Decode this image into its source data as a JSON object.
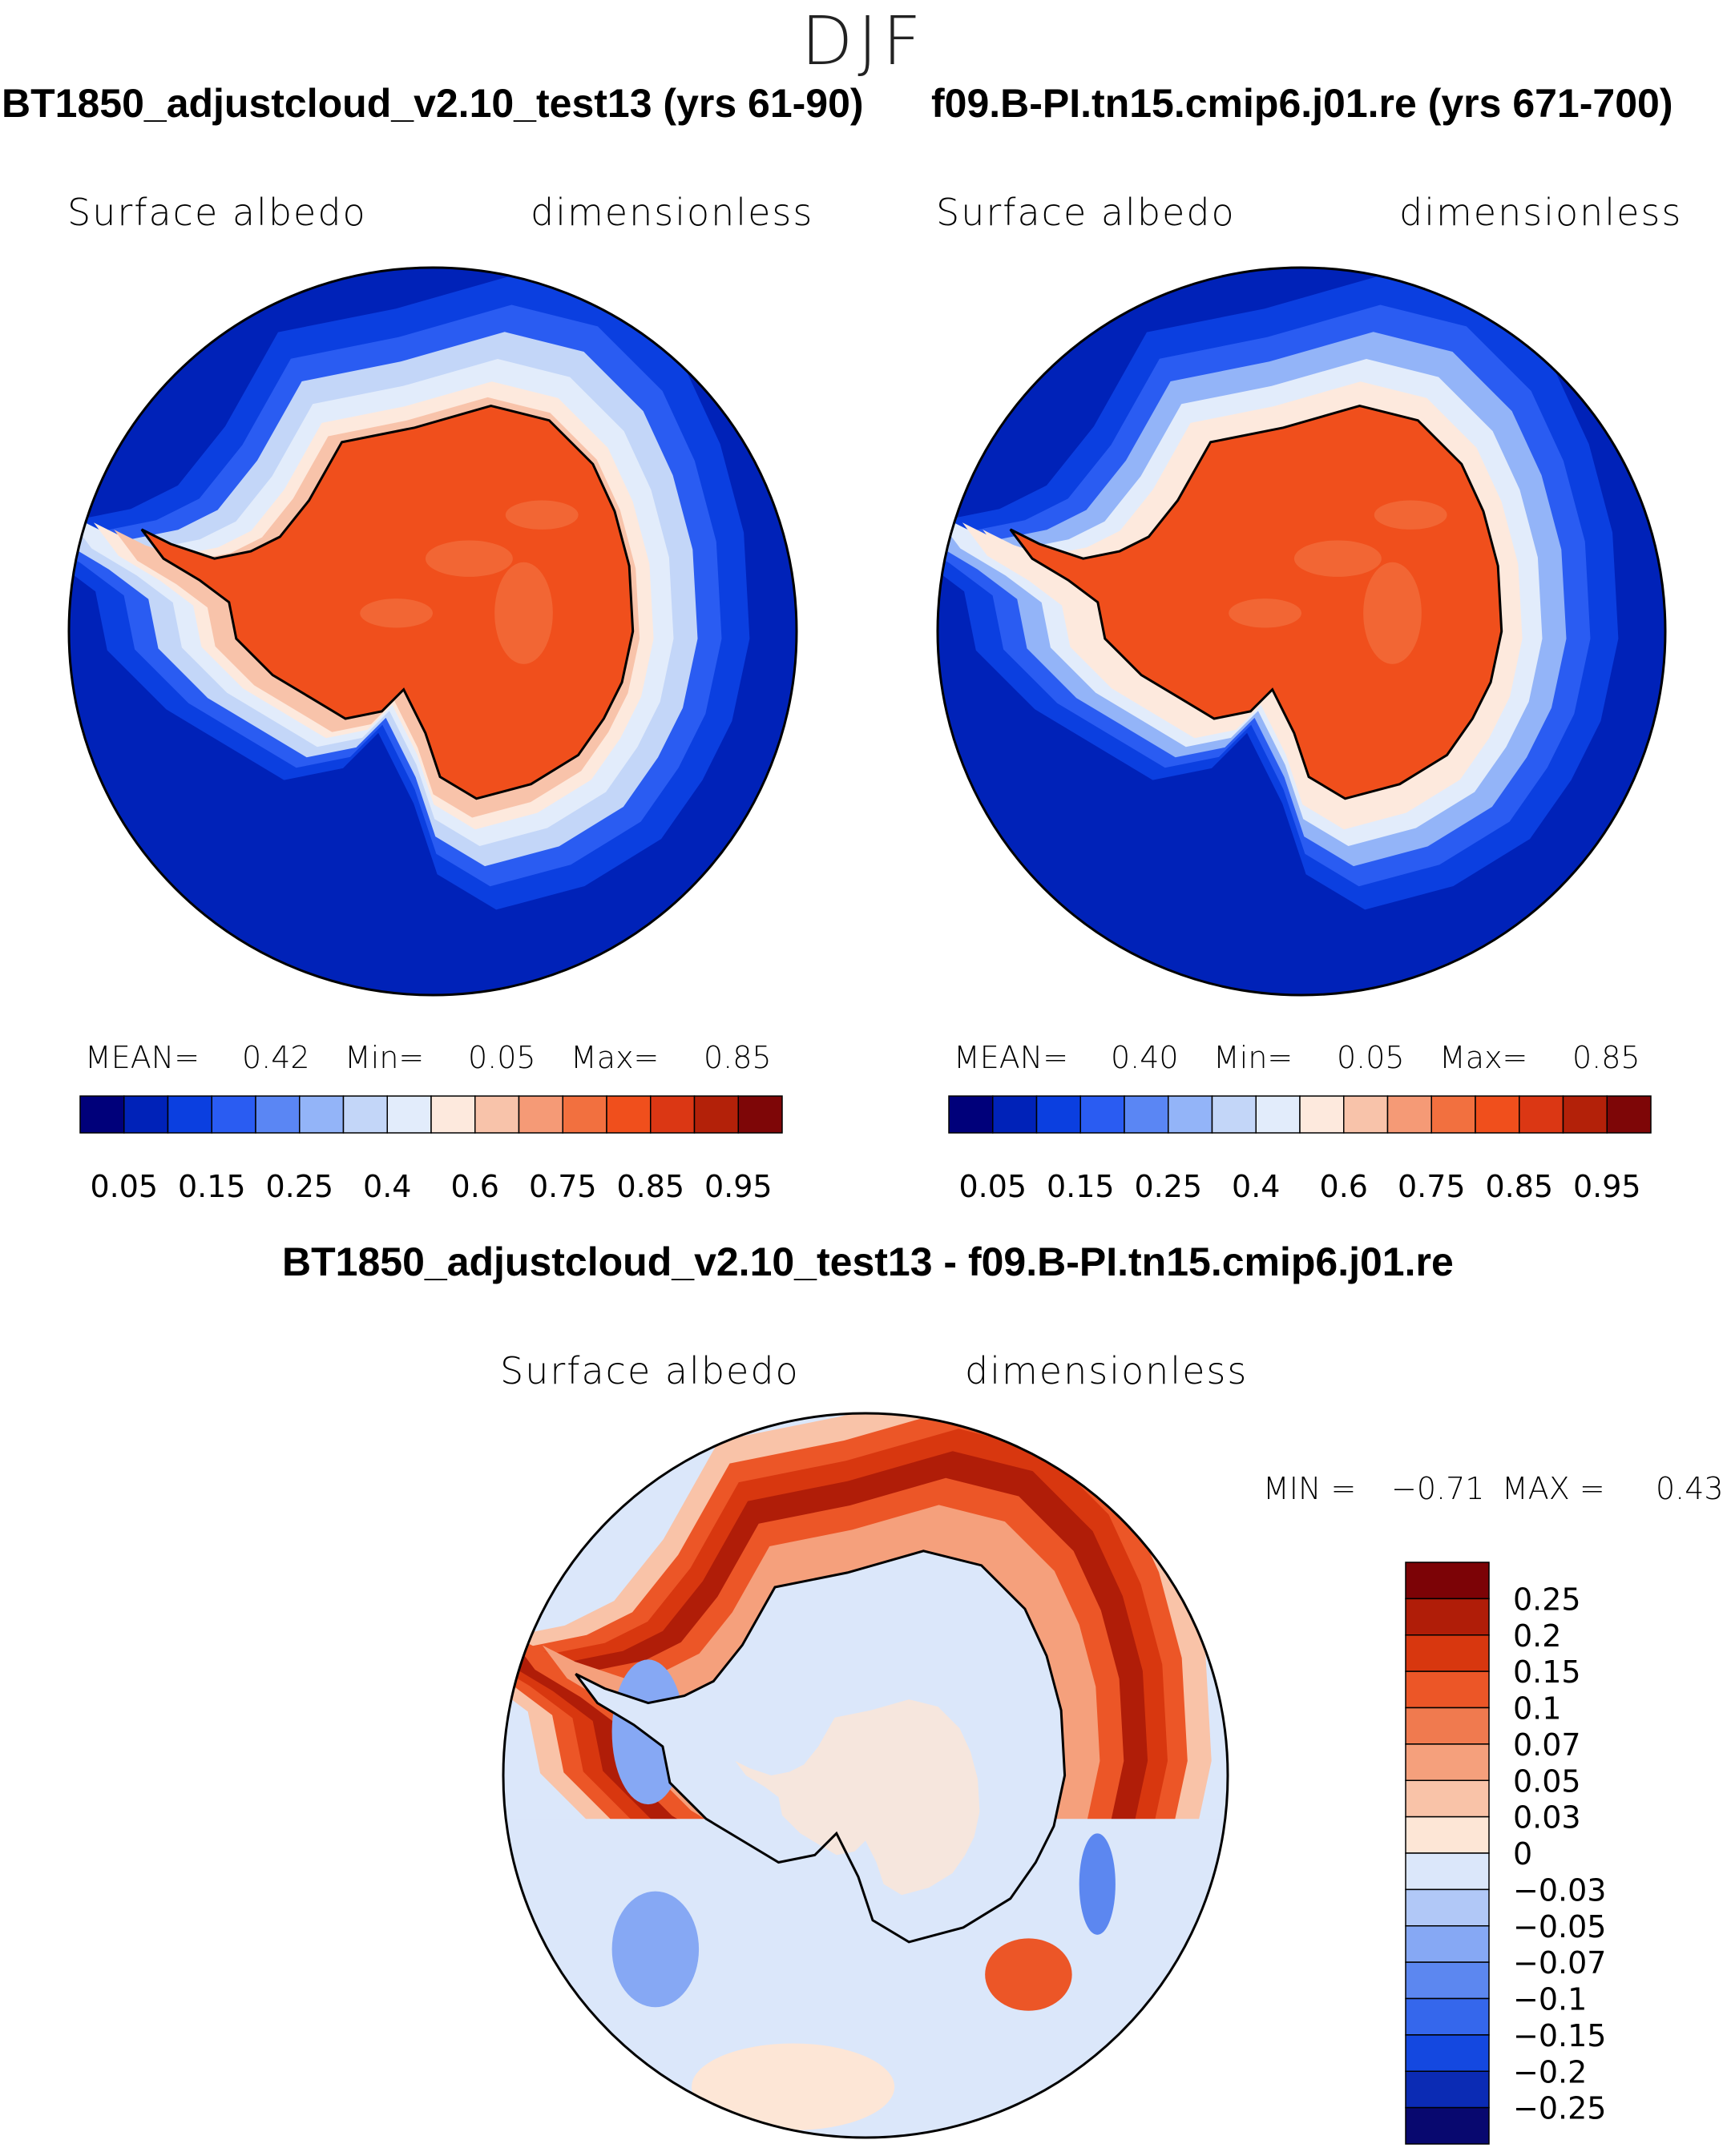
{
  "figure": {
    "season": "DJF",
    "panel_left": {
      "title": "BT1850_adjustcloud_v2.10_test13 (yrs 61-90)",
      "variable": "Surface albedo",
      "units": "dimensionless",
      "mean_label": "MEAN=",
      "mean": "0.42",
      "min_label": "Min=",
      "min": "0.05",
      "max_label": "Max=",
      "max": "0.85"
    },
    "panel_right": {
      "title": "f09.B-PI.tn15.cmip6.j01.re (yrs 671-700)",
      "variable": "Surface albedo",
      "units": "dimensionless",
      "mean_label": "MEAN=",
      "mean": "0.40",
      "min_label": "Min=",
      "min": "0.05",
      "max_label": "Max=",
      "max": "0.85"
    },
    "panel_diff": {
      "title": "BT1850_adjustcloud_v2.10_test13 - f09.B-PI.tn15.cmip6.j01.re",
      "variable": "Surface albedo",
      "units": "dimensionless",
      "min_label": "MIN =",
      "min": "−0.71",
      "max_label": "MAX =",
      "max": "0.43"
    }
  },
  "chart_data": [
    {
      "type": "heatmap",
      "projection": "south-polar-stereographic",
      "title": "BT1850_adjustcloud_v2.10_test13 (yrs 61-90)",
      "field": "Surface albedo",
      "units": "dimensionless",
      "mean": 0.42,
      "min": 0.05,
      "max": 0.85,
      "colorbar": {
        "orientation": "horizontal",
        "levels": [
          0.05,
          0.1,
          0.15,
          0.2,
          0.25,
          0.3,
          0.4,
          0.5,
          0.6,
          0.7,
          0.75,
          0.8,
          0.85,
          0.9,
          0.95
        ],
        "tick_labels": [
          "0.05",
          "0.15",
          "0.25",
          "0.4",
          "0.6",
          "0.75",
          "0.85",
          "0.95"
        ],
        "colors": [
          "#00007a",
          "#0022b8",
          "#0b3fe0",
          "#2a5cf2",
          "#5a86f4",
          "#93b4f8",
          "#c3d6f8",
          "#e2ecfb",
          "#fde9dd",
          "#f8c3aa",
          "#f59a76",
          "#f2703f",
          "#f04f1c",
          "#db3714",
          "#b32109",
          "#7e0607"
        ]
      },
      "regions": {
        "open_ocean": 0.07,
        "seaice_edge": 0.3,
        "seaice_pack": 0.62,
        "ice_sheet": 0.84
      }
    },
    {
      "type": "heatmap",
      "projection": "south-polar-stereographic",
      "title": "f09.B-PI.tn15.cmip6.j01.re (yrs 671-700)",
      "field": "Surface albedo",
      "units": "dimensionless",
      "mean": 0.4,
      "min": 0.05,
      "max": 0.85,
      "colorbar": {
        "orientation": "horizontal",
        "levels": [
          0.05,
          0.1,
          0.15,
          0.2,
          0.25,
          0.3,
          0.4,
          0.5,
          0.6,
          0.7,
          0.75,
          0.8,
          0.85,
          0.9,
          0.95
        ],
        "tick_labels": [
          "0.05",
          "0.15",
          "0.25",
          "0.4",
          "0.6",
          "0.75",
          "0.85",
          "0.95"
        ],
        "colors": [
          "#00007a",
          "#0022b8",
          "#0b3fe0",
          "#2a5cf2",
          "#5a86f4",
          "#93b4f8",
          "#c3d6f8",
          "#e2ecfb",
          "#fde9dd",
          "#f8c3aa",
          "#f59a76",
          "#f2703f",
          "#f04f1c",
          "#db3714",
          "#b32109",
          "#7e0607"
        ]
      },
      "regions": {
        "open_ocean": 0.07,
        "seaice_edge": 0.25,
        "seaice_pack": 0.55,
        "ice_sheet": 0.84
      }
    },
    {
      "type": "heatmap",
      "projection": "south-polar-stereographic",
      "title": "BT1850_adjustcloud_v2.10_test13 - f09.B-PI.tn15.cmip6.j01.re",
      "field": "Surface albedo",
      "units": "dimensionless",
      "min": -0.71,
      "max": 0.43,
      "colorbar": {
        "orientation": "vertical",
        "levels": [
          -0.25,
          -0.2,
          -0.15,
          -0.1,
          -0.07,
          -0.05,
          -0.03,
          0,
          0.03,
          0.05,
          0.07,
          0.1,
          0.15,
          0.2,
          0.25
        ],
        "tick_labels": [
          "0.25",
          "0.2",
          "0.15",
          "0.1",
          "0.07",
          "0.05",
          "0.03",
          "0",
          "−0.03",
          "−0.05",
          "−0.07",
          "−0.1",
          "−0.15",
          "−0.2",
          "−0.25"
        ],
        "colors": [
          "#08086f",
          "#0b2bb4",
          "#1448e0",
          "#3567ec",
          "#5c87f0",
          "#86a8f4",
          "#b1c8f7",
          "#dbe7fa",
          "#fde6d6",
          "#f9c3a8",
          "#f5a07c",
          "#f07a4f",
          "#ec5627",
          "#d8370f",
          "#b01d08",
          "#7c0306"
        ]
      },
      "regions": {
        "background": -0.01,
        "ring_increase": 0.17,
        "peninsula_decrease": -0.07,
        "ice_sheet": -0.01
      }
    }
  ]
}
